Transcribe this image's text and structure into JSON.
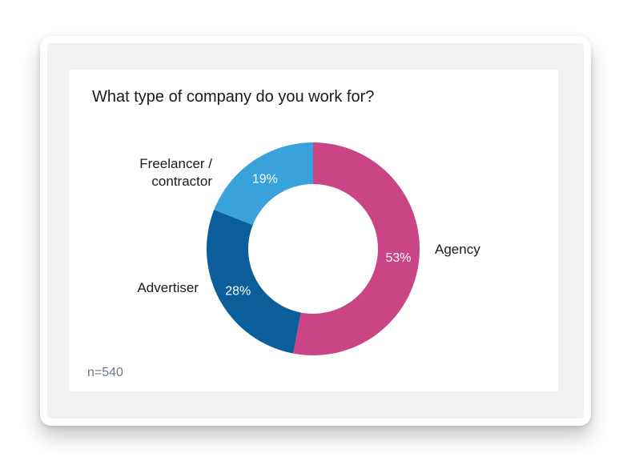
{
  "chart_data": {
    "type": "pie",
    "title": "What type of company do you work for?",
    "categories": [
      "Agency",
      "Advertiser",
      "Freelancer / contractor"
    ],
    "category_lines": [
      [
        "Agency"
      ],
      [
        "Advertiser"
      ],
      [
        "Freelancer /",
        "contractor"
      ]
    ],
    "values": [
      53,
      28,
      19
    ],
    "value_labels": [
      "53%",
      "28%",
      "19%"
    ],
    "colors": [
      "#c94585",
      "#0b5e99",
      "#3aa2db"
    ],
    "donut": true
  },
  "note": "n=540"
}
